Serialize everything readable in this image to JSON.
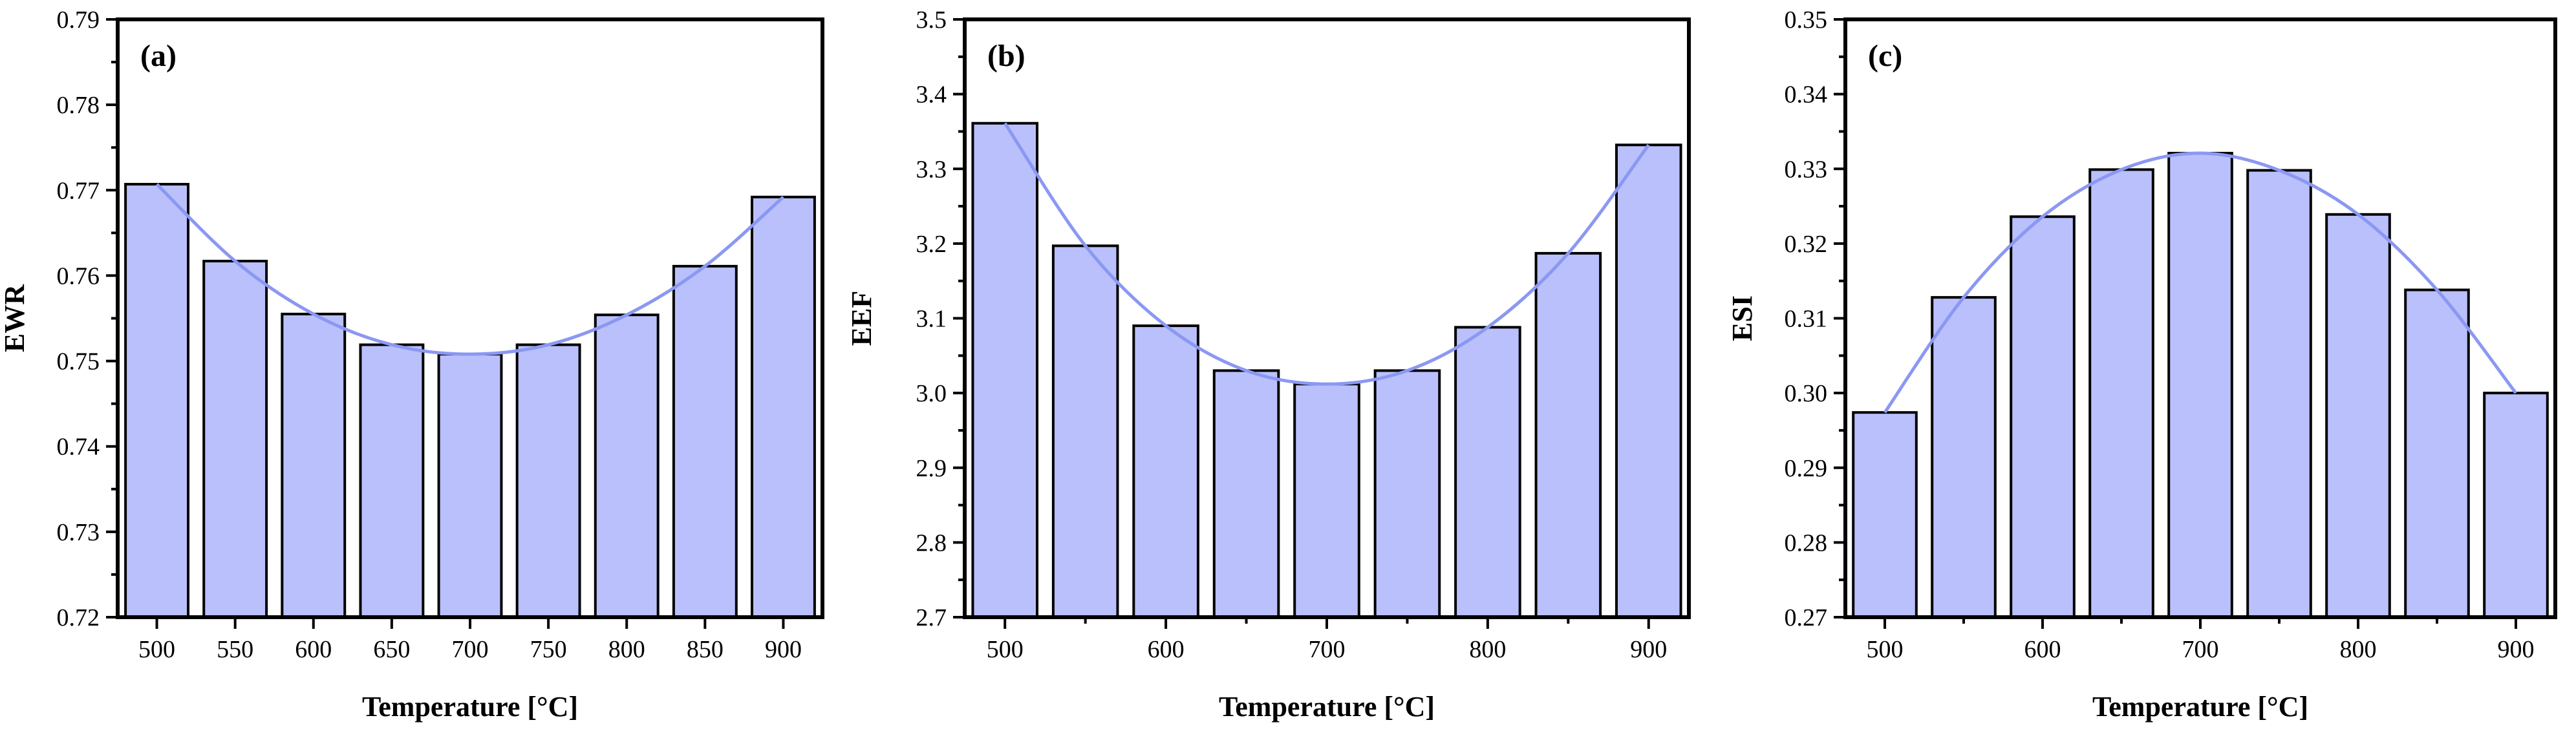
{
  "style": {
    "bar_fill": "#b9c0fb",
    "bar_stroke": "#000000",
    "line_color": "#8b98f2",
    "axis_color": "#000000"
  },
  "chart_data": [
    {
      "type": "bar",
      "panel_label": "(a)",
      "xlabel": "Temperature [°C]",
      "ylabel": "EWR",
      "categories": [
        500,
        550,
        600,
        650,
        700,
        750,
        800,
        850,
        900
      ],
      "x_ticks": [
        500,
        550,
        600,
        650,
        700,
        750,
        800,
        850,
        900
      ],
      "values": [
        0.7707,
        0.7617,
        0.7555,
        0.7519,
        0.7508,
        0.7519,
        0.7554,
        0.7611,
        0.7692
      ],
      "y_ticks": [
        "0.72",
        "0.73",
        "0.74",
        "0.75",
        "0.76",
        "0.77",
        "0.78",
        "0.79"
      ],
      "ylim": [
        0.72,
        0.79
      ],
      "trend_line": true
    },
    {
      "type": "bar",
      "panel_label": "(b)",
      "xlabel": "Temperature [°C]",
      "ylabel": "EEF",
      "categories": [
        500,
        550,
        600,
        650,
        700,
        750,
        800,
        850,
        900
      ],
      "x_ticks": [
        500,
        600,
        700,
        800,
        900
      ],
      "values": [
        3.361,
        3.197,
        3.09,
        3.03,
        3.012,
        3.03,
        3.088,
        3.187,
        3.332
      ],
      "y_ticks": [
        "2.7",
        "2.8",
        "2.9",
        "3.0",
        "3.1",
        "3.2",
        "3.3",
        "3.4",
        "3.5"
      ],
      "ylim": [
        2.7,
        3.5
      ],
      "trend_line": true
    },
    {
      "type": "bar",
      "panel_label": "(c)",
      "xlabel": "Temperature [°C]",
      "ylabel": "ESI",
      "categories": [
        500,
        550,
        600,
        650,
        700,
        750,
        800,
        850,
        900
      ],
      "x_ticks": [
        500,
        600,
        700,
        800,
        900
      ],
      "values": [
        0.2974,
        0.3128,
        0.3236,
        0.3299,
        0.3321,
        0.3298,
        0.3239,
        0.3138,
        0.3
      ],
      "y_ticks": [
        "0.27",
        "0.28",
        "0.29",
        "0.30",
        "0.31",
        "0.32",
        "0.33",
        "0.34",
        "0.35"
      ],
      "ylim": [
        0.27,
        0.35
      ],
      "trend_line": true
    }
  ]
}
